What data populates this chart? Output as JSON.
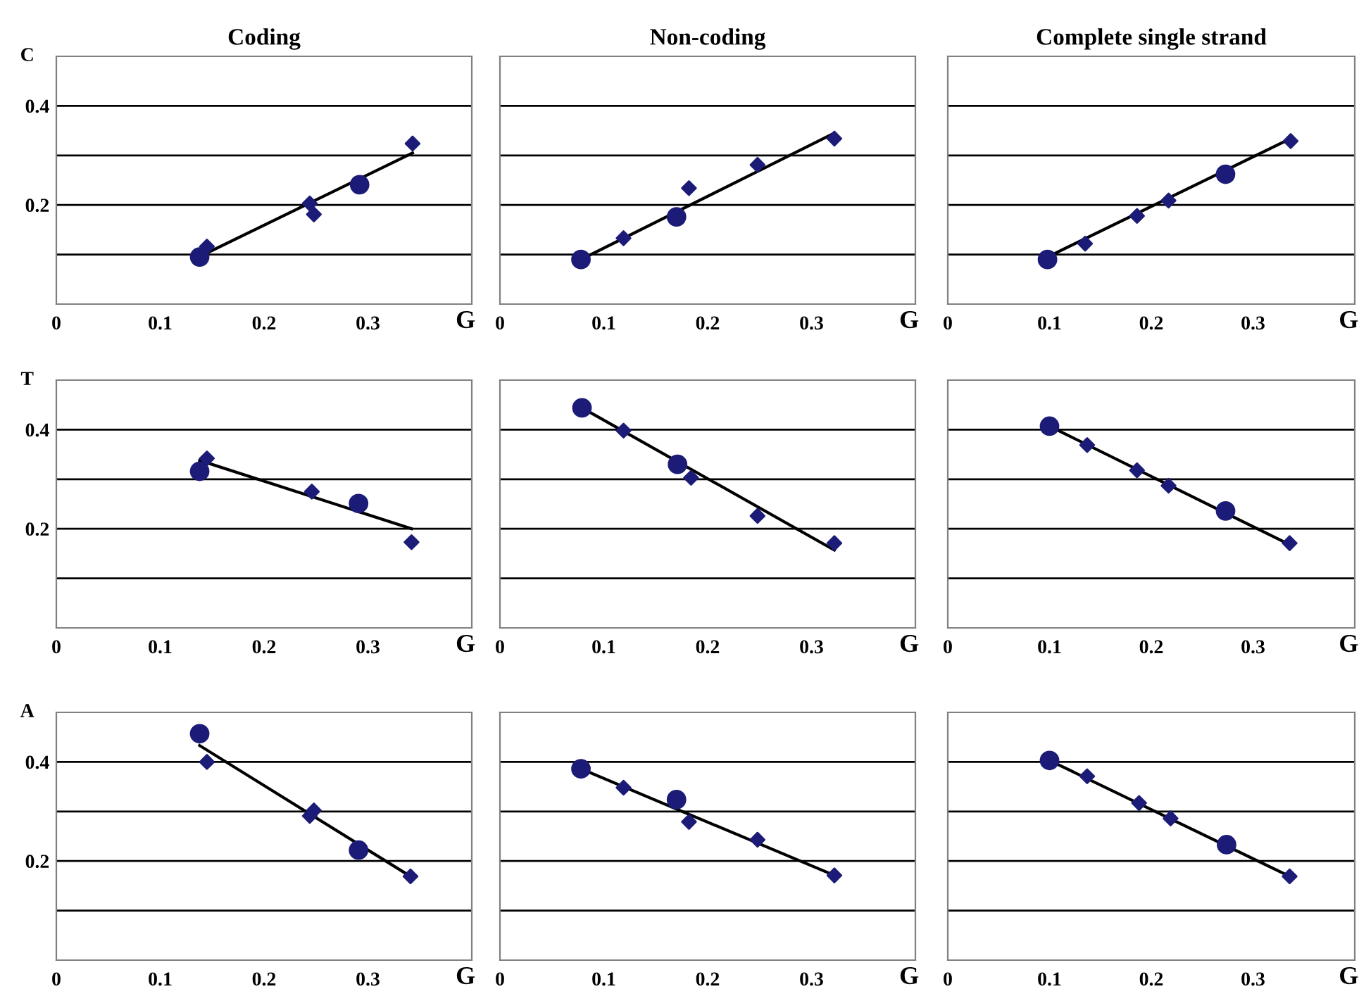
{
  "chart_data": [
    {
      "type": "scatter",
      "title": "Coding",
      "ylabel": "C",
      "xlabel": "G",
      "xlim": [
        0,
        0.4
      ],
      "ylim": [
        0,
        0.5
      ],
      "xticks": [
        0,
        0.1,
        0.2,
        0.3
      ],
      "yticks": [
        {
          "value": 0.1,
          "label": null
        },
        {
          "value": 0.2,
          "label": "0.2"
        },
        {
          "value": 0.3,
          "label": null
        },
        {
          "value": 0.4,
          "label": "0.4"
        }
      ],
      "grid": "y",
      "series": [
        {
          "color": "#1c1c78",
          "marker": "circle",
          "x": [
            0.138,
            0.292
          ],
          "values": [
            0.095,
            0.241
          ]
        },
        {
          "color": "#1c1c78",
          "marker": "diamond",
          "x": [
            0.145,
            0.244,
            0.248,
            0.343
          ],
          "values": [
            0.116,
            0.203,
            0.181,
            0.324
          ]
        },
        {
          "type": "line",
          "color": "#000000",
          "marker": "none",
          "x": [
            0.145,
            0.343
          ],
          "values": [
            0.103,
            0.305
          ]
        }
      ]
    },
    {
      "type": "scatter",
      "title": "Non-coding",
      "xlabel": "G",
      "xlim": [
        0,
        0.4
      ],
      "ylim": [
        0,
        0.5
      ],
      "xticks": [
        0,
        0.1,
        0.2,
        0.3
      ],
      "yticks": [
        {
          "value": 0.1,
          "label": null
        },
        {
          "value": 0.2,
          "label": null
        },
        {
          "value": 0.3,
          "label": null
        },
        {
          "value": 0.4,
          "label": null
        }
      ],
      "grid": "y",
      "tick_labels": "x",
      "series": [
        {
          "color": "#1c1c78",
          "marker": "circle",
          "x": [
            0.078,
            0.17
          ],
          "values": [
            0.09,
            0.176
          ]
        },
        {
          "color": "#1c1c78",
          "marker": "diamond",
          "x": [
            0.119,
            0.182,
            0.248,
            0.322
          ],
          "values": [
            0.133,
            0.234,
            0.281,
            0.334
          ]
        },
        {
          "type": "line",
          "color": "#000000",
          "marker": "none",
          "x": [
            0.078,
            0.322
          ],
          "values": [
            0.09,
            0.345
          ]
        }
      ]
    },
    {
      "type": "scatter",
      "title": "Complete single strand",
      "xlabel": "G",
      "xlim": [
        0,
        0.4
      ],
      "ylim": [
        0,
        0.5
      ],
      "xticks": [
        0,
        0.1,
        0.2,
        0.3
      ],
      "yticks": [
        {
          "value": 0.1,
          "label": null
        },
        {
          "value": 0.2,
          "label": null
        },
        {
          "value": 0.3,
          "label": null
        },
        {
          "value": 0.4,
          "label": null
        }
      ],
      "grid": "y",
      "tick_labels": "x",
      "series": [
        {
          "color": "#1c1c78",
          "marker": "circle",
          "x": [
            0.098,
            0.273
          ],
          "values": [
            0.09,
            0.262
          ]
        },
        {
          "color": "#1c1c78",
          "marker": "diamond",
          "x": [
            0.135,
            0.186,
            0.217,
            0.337
          ],
          "values": [
            0.122,
            0.178,
            0.209,
            0.329
          ]
        },
        {
          "type": "line",
          "color": "#000000",
          "marker": "none",
          "x": [
            0.098,
            0.337
          ],
          "values": [
            0.095,
            0.334
          ]
        }
      ]
    },
    {
      "type": "scatter",
      "ylabel": "T",
      "xlabel": "G",
      "xlim": [
        0,
        0.4
      ],
      "ylim": [
        0,
        0.5
      ],
      "xticks": [
        0,
        0.1,
        0.2,
        0.3
      ],
      "yticks": [
        {
          "value": 0.1,
          "label": null
        },
        {
          "value": 0.2,
          "label": "0.2"
        },
        {
          "value": 0.3,
          "label": null
        },
        {
          "value": 0.4,
          "label": "0.4"
        }
      ],
      "grid": "y",
      "series": [
        {
          "color": "#1c1c78",
          "marker": "circle",
          "x": [
            0.138,
            0.291
          ],
          "values": [
            0.316,
            0.251
          ]
        },
        {
          "color": "#1c1c78",
          "marker": "diamond",
          "x": [
            0.145,
            0.246,
            0.342
          ],
          "values": [
            0.342,
            0.275,
            0.173
          ]
        },
        {
          "type": "line",
          "color": "#000000",
          "marker": "none",
          "x": [
            0.138,
            0.342
          ],
          "values": [
            0.338,
            0.2
          ]
        }
      ]
    },
    {
      "type": "scatter",
      "xlabel": "G",
      "xlim": [
        0,
        0.4
      ],
      "ylim": [
        0,
        0.5
      ],
      "xticks": [
        0,
        0.1,
        0.2,
        0.3
      ],
      "yticks": [
        {
          "value": 0.1,
          "label": null
        },
        {
          "value": 0.2,
          "label": null
        },
        {
          "value": 0.3,
          "label": null
        },
        {
          "value": 0.4,
          "label": null
        }
      ],
      "grid": "y",
      "tick_labels": "x",
      "series": [
        {
          "color": "#1c1c78",
          "marker": "circle",
          "x": [
            0.079,
            0.171
          ],
          "values": [
            0.444,
            0.33
          ]
        },
        {
          "color": "#1c1c78",
          "marker": "diamond",
          "x": [
            0.119,
            0.184,
            0.248,
            0.322
          ],
          "values": [
            0.398,
            0.303,
            0.226,
            0.171
          ]
        },
        {
          "type": "line",
          "color": "#000000",
          "marker": "none",
          "x": [
            0.079,
            0.322
          ],
          "values": [
            0.444,
            0.157
          ]
        }
      ]
    },
    {
      "type": "scatter",
      "xlabel": "G",
      "xlim": [
        0,
        0.4
      ],
      "ylim": [
        0,
        0.5
      ],
      "xticks": [
        0,
        0.1,
        0.2,
        0.3
      ],
      "yticks": [
        {
          "value": 0.1,
          "label": null
        },
        {
          "value": 0.2,
          "label": null
        },
        {
          "value": 0.3,
          "label": null
        },
        {
          "value": 0.4,
          "label": null
        }
      ],
      "grid": "y",
      "tick_labels": "x",
      "series": [
        {
          "color": "#1c1c78",
          "marker": "circle",
          "x": [
            0.1,
            0.273
          ],
          "values": [
            0.407,
            0.236
          ]
        },
        {
          "color": "#1c1c78",
          "marker": "diamond",
          "x": [
            0.137,
            0.186,
            0.217,
            0.336
          ],
          "values": [
            0.369,
            0.318,
            0.287,
            0.171
          ]
        },
        {
          "type": "line",
          "color": "#000000",
          "marker": "none",
          "x": [
            0.1,
            0.336
          ],
          "values": [
            0.407,
            0.168
          ]
        }
      ]
    },
    {
      "type": "scatter",
      "ylabel": "A",
      "xlabel": "G",
      "xlim": [
        0,
        0.4
      ],
      "ylim": [
        0,
        0.5
      ],
      "xticks": [
        0,
        0.1,
        0.2,
        0.3
      ],
      "yticks": [
        {
          "value": 0.1,
          "label": null
        },
        {
          "value": 0.2,
          "label": "0.2"
        },
        {
          "value": 0.3,
          "label": null
        },
        {
          "value": 0.4,
          "label": "0.4"
        }
      ],
      "grid": "y",
      "series": [
        {
          "color": "#1c1c78",
          "marker": "circle",
          "x": [
            0.138,
            0.291
          ],
          "values": [
            0.457,
            0.222
          ]
        },
        {
          "color": "#1c1c78",
          "marker": "diamond",
          "x": [
            0.145,
            0.244,
            0.248,
            0.341
          ],
          "values": [
            0.4,
            0.291,
            0.302,
            0.169
          ]
        },
        {
          "type": "line",
          "color": "#000000",
          "marker": "none",
          "x": [
            0.138,
            0.341
          ],
          "values": [
            0.433,
            0.169
          ]
        }
      ]
    },
    {
      "type": "scatter",
      "xlabel": "G",
      "xlim": [
        0,
        0.4
      ],
      "ylim": [
        0,
        0.5
      ],
      "xticks": [
        0,
        0.1,
        0.2,
        0.3
      ],
      "yticks": [
        {
          "value": 0.1,
          "label": null
        },
        {
          "value": 0.2,
          "label": null
        },
        {
          "value": 0.3,
          "label": null
        },
        {
          "value": 0.4,
          "label": null
        }
      ],
      "grid": "y",
      "tick_labels": "x",
      "series": [
        {
          "color": "#1c1c78",
          "marker": "circle",
          "x": [
            0.078,
            0.17
          ],
          "values": [
            0.386,
            0.324
          ]
        },
        {
          "color": "#1c1c78",
          "marker": "diamond",
          "x": [
            0.119,
            0.182,
            0.248,
            0.322
          ],
          "values": [
            0.348,
            0.279,
            0.243,
            0.171
          ]
        },
        {
          "type": "line",
          "color": "#000000",
          "marker": "none",
          "x": [
            0.078,
            0.322
          ],
          "values": [
            0.386,
            0.171
          ]
        }
      ]
    },
    {
      "type": "scatter",
      "xlabel": "G",
      "xlim": [
        0,
        0.4
      ],
      "ylim": [
        0,
        0.5
      ],
      "xticks": [
        0,
        0.1,
        0.2,
        0.3
      ],
      "yticks": [
        {
          "value": 0.1,
          "label": null
        },
        {
          "value": 0.2,
          "label": null
        },
        {
          "value": 0.3,
          "label": null
        },
        {
          "value": 0.4,
          "label": null
        }
      ],
      "grid": "y",
      "tick_labels": "x",
      "series": [
        {
          "color": "#1c1c78",
          "marker": "circle",
          "x": [
            0.1,
            0.274
          ],
          "values": [
            0.403,
            0.233
          ]
        },
        {
          "color": "#1c1c78",
          "marker": "diamond",
          "x": [
            0.137,
            0.188,
            0.219,
            0.336
          ],
          "values": [
            0.371,
            0.317,
            0.286,
            0.169
          ]
        },
        {
          "type": "line",
          "color": "#000000",
          "marker": "none",
          "x": [
            0.1,
            0.336
          ],
          "values": [
            0.403,
            0.169
          ]
        }
      ]
    }
  ]
}
